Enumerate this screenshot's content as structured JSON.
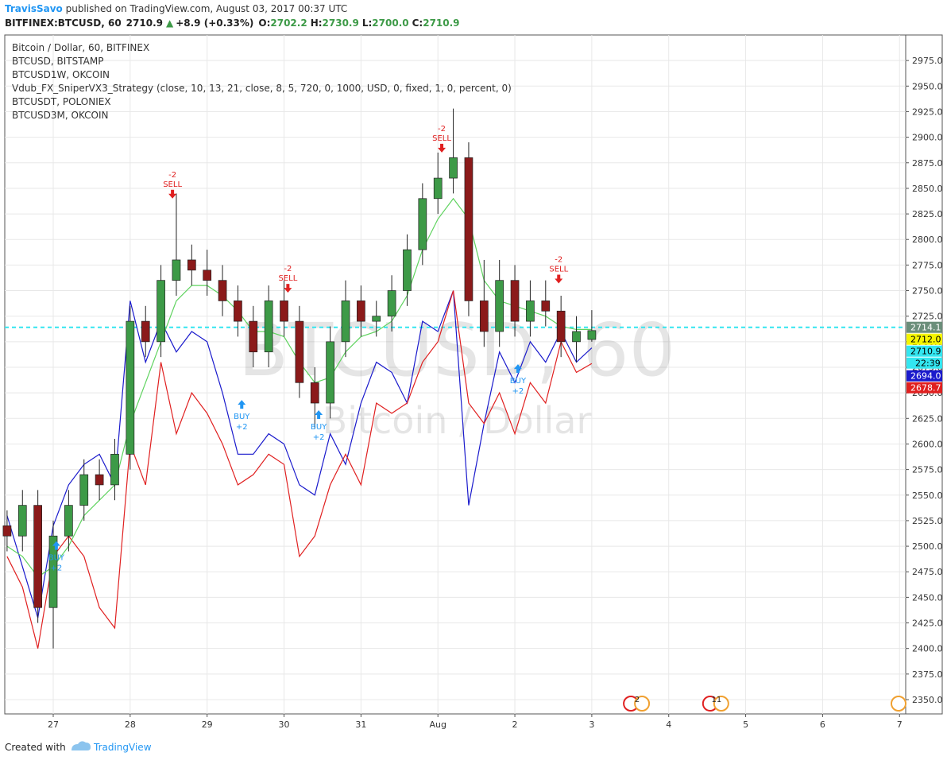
{
  "header": {
    "author": "TravisSavo",
    "published": " published on TradingView.com, August 03, 2017 00:37 UTC",
    "symbol": "BITFINEX:BTCUSD, 60",
    "last": "2710.9",
    "arrow": "▲",
    "change": "+8.9 (+0.33%)",
    "o_label": "O:",
    "o": "2702.2",
    "h_label": "H:",
    "h": "2730.9",
    "l_label": "L:",
    "l": "2700.0",
    "c_label": "C:",
    "c": "2710.9"
  },
  "footer": {
    "created": "Created with",
    "brand": "TradingView"
  },
  "chart_data": {
    "type": "candlestick",
    "legend_lines": [
      "Bitcoin / Dollar, 60, BITFINEX",
      "BTCUSD, BITSTAMP",
      "BTCUSD1W, OKCOIN",
      "Vdub_FX_SniperVX3_Strategy (close, 10, 13, 21, close, 8, 5, 720, 0, 1000, USD, 0, fixed, 1, 0, percent, 0)",
      "BTCUSDT, POLONIEX",
      "BTCUSD3M, OKCOIN"
    ],
    "watermark": [
      "BTCUSD, 60",
      "Bitcoin / Dollar"
    ],
    "grid": true,
    "up_color": "#3d9a47",
    "down_color": "#8b1a1a",
    "xlim": [
      -0.63,
      11.08
    ],
    "ylim": [
      2336,
      3000
    ],
    "xticks": [
      {
        "value": 0,
        "label": "27"
      },
      {
        "value": 1,
        "label": "28"
      },
      {
        "value": 2,
        "label": "29"
      },
      {
        "value": 3,
        "label": "30"
      },
      {
        "value": 4,
        "label": "31"
      },
      {
        "value": 5,
        "label": "Aug"
      },
      {
        "value": 6,
        "label": "2"
      },
      {
        "value": 7,
        "label": "3"
      },
      {
        "value": 8,
        "label": "4"
      },
      {
        "value": 9,
        "label": "5"
      },
      {
        "value": 10,
        "label": "6"
      },
      {
        "value": 11,
        "label": "7"
      }
    ],
    "yticks": [
      {
        "value": 2350,
        "label": "2350.0"
      },
      {
        "value": 2375,
        "label": "2375.0"
      },
      {
        "value": 2400,
        "label": "2400.0"
      },
      {
        "value": 2425,
        "label": "2425.0"
      },
      {
        "value": 2450,
        "label": "2450.0"
      },
      {
        "value": 2475,
        "label": "2475.0"
      },
      {
        "value": 2500,
        "label": "2500.0"
      },
      {
        "value": 2525,
        "label": "2525.0"
      },
      {
        "value": 2550,
        "label": "2550.0"
      },
      {
        "value": 2575,
        "label": "2575.0"
      },
      {
        "value": 2600,
        "label": "2600.0"
      },
      {
        "value": 2625,
        "label": "2625.0"
      },
      {
        "value": 2650,
        "label": "2650.0"
      },
      {
        "value": 2675,
        "label": "2675.0"
      },
      {
        "value": 2700,
        "label": "2700.0"
      },
      {
        "value": 2725,
        "label": "2725.0"
      },
      {
        "value": 2750,
        "label": "2750.0"
      },
      {
        "value": 2775,
        "label": "2775.0"
      },
      {
        "value": 2800,
        "label": "2800.0"
      },
      {
        "value": 2825,
        "label": "2825.0"
      },
      {
        "value": 2850,
        "label": "2850.0"
      },
      {
        "value": 2875,
        "label": "2875.0"
      },
      {
        "value": 2900,
        "label": "2900.0"
      },
      {
        "value": 2925,
        "label": "2925.0"
      },
      {
        "value": 2950,
        "label": "2950.0"
      },
      {
        "value": 2975,
        "label": "2975.0"
      }
    ],
    "x": [
      -0.6,
      -0.4,
      -0.2,
      0,
      0.2,
      0.4,
      0.6,
      0.8,
      1,
      1.2,
      1.4,
      1.6,
      1.8,
      2,
      2.2,
      2.4,
      2.6,
      2.8,
      3,
      3.2,
      3.4,
      3.6,
      3.8,
      4,
      4.2,
      4.4,
      4.6,
      4.8,
      5,
      5.2,
      5.4,
      5.6,
      5.8,
      6,
      6.2,
      6.4,
      6.6,
      6.8,
      7
    ],
    "open": [
      2520,
      2510,
      2540,
      2440,
      2510,
      2540,
      2570,
      2560,
      2590,
      2720,
      2700,
      2760,
      2780,
      2770,
      2760,
      2740,
      2720,
      2690,
      2740,
      2720,
      2660,
      2640,
      2700,
      2740,
      2720,
      2725,
      2750,
      2790,
      2840,
      2860,
      2880,
      2740,
      2710,
      2760,
      2720,
      2740,
      2730,
      2700,
      2702.2
    ],
    "high": [
      2535,
      2555,
      2555,
      2525,
      2555,
      2585,
      2585,
      2605,
      2735,
      2735,
      2775,
      2845,
      2795,
      2790,
      2775,
      2755,
      2735,
      2755,
      2760,
      2735,
      2675,
      2715,
      2760,
      2755,
      2740,
      2765,
      2805,
      2855,
      2885,
      2928,
      2895,
      2780,
      2780,
      2775,
      2760,
      2760,
      2745,
      2725,
      2730.9
    ],
    "low": [
      2495,
      2495,
      2425,
      2400,
      2495,
      2525,
      2545,
      2545,
      2575,
      2685,
      2685,
      2745,
      2755,
      2745,
      2725,
      2705,
      2675,
      2675,
      2705,
      2645,
      2615,
      2625,
      2685,
      2705,
      2705,
      2710,
      2735,
      2775,
      2825,
      2845,
      2725,
      2695,
      2695,
      2705,
      2705,
      2715,
      2685,
      2680,
      2700
    ],
    "close": [
      2510,
      2540,
      2440,
      2510,
      2540,
      2570,
      2560,
      2590,
      2720,
      2700,
      2760,
      2780,
      2770,
      2760,
      2740,
      2720,
      2690,
      2740,
      2720,
      2660,
      2640,
      2700,
      2740,
      2720,
      2725,
      2750,
      2790,
      2840,
      2860,
      2880,
      2740,
      2710,
      2760,
      2720,
      2740,
      2730,
      2700,
      2710,
      2710.9
    ],
    "series": [
      {
        "name": "BTCUSD1W, OKCOIN",
        "color": "#1a1acc",
        "values": [
          2530,
          2480,
          2430,
          2520,
          2560,
          2580,
          2590,
          2560,
          2740,
          2680,
          2720,
          2690,
          2710,
          2700,
          2650,
          2590,
          2590,
          2610,
          2600,
          2560,
          2550,
          2610,
          2580,
          2640,
          2680,
          2670,
          2640,
          2720,
          2710,
          2750,
          2540,
          2620,
          2690,
          2660,
          2700,
          2680,
          2710,
          2680,
          2694
        ]
      },
      {
        "name": "BTCUSD3M, OKCOIN",
        "color": "#e02020",
        "values": [
          2490,
          2460,
          2400,
          2490,
          2510,
          2490,
          2440,
          2420,
          2600,
          2560,
          2680,
          2610,
          2650,
          2630,
          2600,
          2560,
          2570,
          2590,
          2580,
          2490,
          2510,
          2560,
          2590,
          2560,
          2640,
          2630,
          2640,
          2680,
          2700,
          2750,
          2640,
          2620,
          2650,
          2610,
          2660,
          2640,
          2700,
          2670,
          2678.7
        ]
      },
      {
        "name": "BTCUSD, BITSTAMP",
        "color": "#5fd35f",
        "values": [
          2500,
          2490,
          2470,
          2480,
          2500,
          2530,
          2545,
          2560,
          2620,
          2660,
          2700,
          2740,
          2755,
          2755,
          2745,
          2730,
          2710,
          2710,
          2705,
          2680,
          2660,
          2665,
          2690,
          2705,
          2710,
          2720,
          2745,
          2790,
          2820,
          2840,
          2820,
          2760,
          2740,
          2735,
          2730,
          2725,
          2715,
          2712,
          2712
        ]
      }
    ],
    "signals": [
      {
        "label": "BUY",
        "amount": "+2",
        "x": 0.04,
        "price": 2505
      },
      {
        "label": "SELL",
        "amount": "-2",
        "x": 1.55,
        "price": 2840
      },
      {
        "label": "BUY",
        "amount": "+2",
        "x": 2.45,
        "price": 2643
      },
      {
        "label": "SELL",
        "amount": "-2",
        "x": 3.05,
        "price": 2748
      },
      {
        "label": "BUY",
        "amount": "+2",
        "x": 3.45,
        "price": 2633
      },
      {
        "label": "SELL",
        "amount": "-2",
        "x": 5.05,
        "price": 2885
      },
      {
        "label": "BUY",
        "amount": "+2",
        "x": 6.04,
        "price": 2678
      },
      {
        "label": "SELL",
        "amount": "-2",
        "x": 6.57,
        "price": 2757
      }
    ],
    "events": [
      {
        "x": 7.57,
        "label": "2"
      },
      {
        "x": 8.6,
        "label": "11"
      }
    ],
    "price_tags": [
      {
        "value": 2714.1,
        "label": "2714.1",
        "color": "#6b8e7a"
      },
      {
        "value": 2712.0,
        "label": "2712.0",
        "color": "#f5f500"
      },
      {
        "value": 2710.9,
        "label": "2710.9",
        "color": "#33e6f0",
        "countdown": "22:39"
      },
      {
        "value": 2694.0,
        "label": "2694.0",
        "color": "#1a1acc"
      },
      {
        "value": 2678.7,
        "label": "2678.7",
        "color": "#e02020"
      }
    ]
  }
}
